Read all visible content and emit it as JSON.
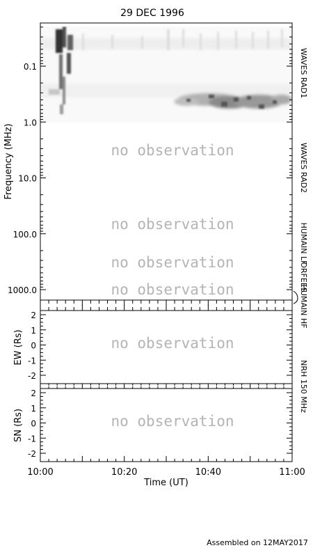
{
  "title": "29 DEC 1996",
  "footer": "Assembled on 12MAY2017",
  "no_observation_text": "no observation",
  "chart_data": [
    {
      "type": "heatmap",
      "panel": "dynamic-spectrum",
      "ylabel": "Frequency (MHz)",
      "yscale": "log",
      "yaxis_inverted": true,
      "yticks": [
        {
          "value": 0.1,
          "label": "0.1"
        },
        {
          "value": 1.0,
          "label": "1.0"
        },
        {
          "value": 10.0,
          "label": "10.0"
        },
        {
          "value": 100.0,
          "label": "100.0"
        },
        {
          "value": 1000.0,
          "label": "1000.0"
        }
      ],
      "xticks": [
        "10:00",
        "10:20",
        "10:40",
        "11:00"
      ],
      "xlabel": "Time (UT)",
      "instruments": [
        {
          "label": "WAVES RAD1",
          "observed": true
        },
        {
          "label": "WAVES RAD2",
          "observed": false
        },
        {
          "label": "HUMAIN LF",
          "observed": false
        },
        {
          "label": "ORFEES",
          "observed": false
        },
        {
          "label": "HUMAIN HF",
          "observed": false
        }
      ]
    },
    {
      "type": "scatter",
      "panel": "nrh-ew",
      "ylabel": "EW (Rs)",
      "ylim": [
        -2,
        2
      ],
      "yticks": [
        "2",
        "1",
        "0",
        "-1",
        "-2"
      ],
      "instrument": "NRH 150 MHz",
      "observed": false
    },
    {
      "type": "scatter",
      "panel": "nrh-sn",
      "ylabel": "SN (Rs)",
      "ylim": [
        -2,
        2
      ],
      "yticks": [
        "2",
        "1",
        "0",
        "-1",
        "-2"
      ],
      "observed": false
    }
  ]
}
